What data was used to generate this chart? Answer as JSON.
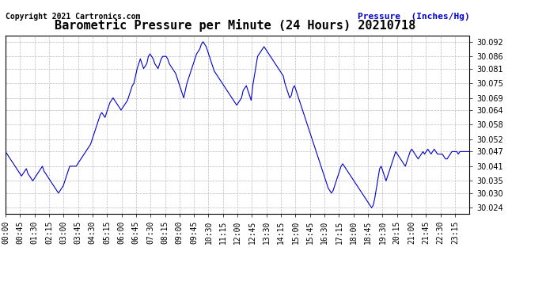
{
  "title": "Barometric Pressure per Minute (24 Hours) 20210718",
  "copyright_text": "Copyright 2021 Cartronics.com",
  "ylabel": "Pressure  (Inches/Hg)",
  "ylabel_color": "#0000cc",
  "line_color": "#0000cc",
  "background_color": "#ffffff",
  "grid_color": "#bbbbbb",
  "yticks": [
    30.024,
    30.03,
    30.035,
    30.041,
    30.047,
    30.052,
    30.058,
    30.064,
    30.069,
    30.075,
    30.081,
    30.086,
    30.092
  ],
  "ylim": [
    30.0215,
    30.0945
  ],
  "xtick_labels": [
    "00:00",
    "00:45",
    "01:30",
    "02:15",
    "03:00",
    "03:45",
    "04:30",
    "05:15",
    "06:00",
    "06:45",
    "07:30",
    "08:15",
    "09:00",
    "09:45",
    "10:30",
    "11:15",
    "12:00",
    "12:45",
    "13:30",
    "14:15",
    "15:00",
    "15:45",
    "16:30",
    "17:15",
    "18:00",
    "18:45",
    "19:30",
    "20:15",
    "21:00",
    "21:45",
    "22:30",
    "23:15"
  ],
  "title_fontsize": 11,
  "tick_fontsize": 7,
  "copyright_fontsize": 7,
  "ylabel_fontsize": 8,
  "pressure_data": [
    30.047,
    30.046,
    30.045,
    30.044,
    30.043,
    30.042,
    30.041,
    30.04,
    30.039,
    30.038,
    30.037,
    30.038,
    30.039,
    30.04,
    30.038,
    30.037,
    30.036,
    30.035,
    30.036,
    30.037,
    30.038,
    30.039,
    30.04,
    30.041,
    30.039,
    30.038,
    30.037,
    30.036,
    30.035,
    30.034,
    30.033,
    30.032,
    30.031,
    30.03,
    30.031,
    30.032,
    30.033,
    30.035,
    30.037,
    30.039,
    30.041,
    30.041,
    30.041,
    30.041,
    30.041,
    30.042,
    30.043,
    30.044,
    30.045,
    30.046,
    30.047,
    30.048,
    30.049,
    30.05,
    30.052,
    30.054,
    30.056,
    30.058,
    30.06,
    30.062,
    30.063,
    30.062,
    30.061,
    30.063,
    30.065,
    30.067,
    30.068,
    30.069,
    30.068,
    30.067,
    30.066,
    30.065,
    30.064,
    30.065,
    30.066,
    30.067,
    30.068,
    30.07,
    30.072,
    30.074,
    30.075,
    30.078,
    30.081,
    30.083,
    30.085,
    30.083,
    30.081,
    30.082,
    30.083,
    30.086,
    30.087,
    30.086,
    30.085,
    30.083,
    30.082,
    30.081,
    30.083,
    30.085,
    30.086,
    30.086,
    30.086,
    30.085,
    30.083,
    30.082,
    30.081,
    30.08,
    30.079,
    30.077,
    30.075,
    30.073,
    30.071,
    30.069,
    30.072,
    30.075,
    30.077,
    30.079,
    30.081,
    30.083,
    30.085,
    30.087,
    30.088,
    30.089,
    30.091,
    30.092,
    30.091,
    30.09,
    30.088,
    30.086,
    30.084,
    30.082,
    30.08,
    30.079,
    30.078,
    30.077,
    30.076,
    30.075,
    30.074,
    30.073,
    30.072,
    30.071,
    30.07,
    30.069,
    30.068,
    30.067,
    30.066,
    30.067,
    30.068,
    30.069,
    30.072,
    30.073,
    30.074,
    30.072,
    30.07,
    30.068,
    30.074,
    30.078,
    30.082,
    30.086,
    30.087,
    30.088,
    30.089,
    30.09,
    30.089,
    30.088,
    30.087,
    30.086,
    30.085,
    30.084,
    30.083,
    30.082,
    30.081,
    30.08,
    30.079,
    30.078,
    30.075,
    30.073,
    30.071,
    30.069,
    30.07,
    30.073,
    30.074,
    30.072,
    30.07,
    30.068,
    30.066,
    30.064,
    30.062,
    30.06,
    30.058,
    30.056,
    30.054,
    30.052,
    30.05,
    30.048,
    30.046,
    30.044,
    30.042,
    30.04,
    30.038,
    30.036,
    30.034,
    30.032,
    30.031,
    30.03,
    30.031,
    30.033,
    30.035,
    30.037,
    30.039,
    30.041,
    30.042,
    30.041,
    30.04,
    30.039,
    30.038,
    30.037,
    30.036,
    30.035,
    30.034,
    30.033,
    30.032,
    30.031,
    30.03,
    30.029,
    30.028,
    30.027,
    30.026,
    30.025,
    30.024,
    30.025,
    30.028,
    30.032,
    30.036,
    30.04,
    30.041,
    30.039,
    30.037,
    30.035,
    30.037,
    30.039,
    30.041,
    30.043,
    30.045,
    30.047,
    30.046,
    30.045,
    30.044,
    30.043,
    30.042,
    30.041,
    30.043,
    30.045,
    30.047,
    30.048,
    30.047,
    30.046,
    30.045,
    30.044,
    30.045,
    30.046,
    30.047,
    30.046,
    30.047,
    30.048,
    30.047,
    30.046,
    30.047,
    30.048,
    30.047,
    30.046,
    30.046,
    30.046,
    30.046,
    30.045,
    30.044,
    30.044,
    30.045,
    30.046,
    30.047,
    30.047,
    30.047,
    30.047,
    30.046,
    30.047,
    30.047,
    30.047,
    30.047,
    30.047,
    30.047,
    30.047
  ]
}
